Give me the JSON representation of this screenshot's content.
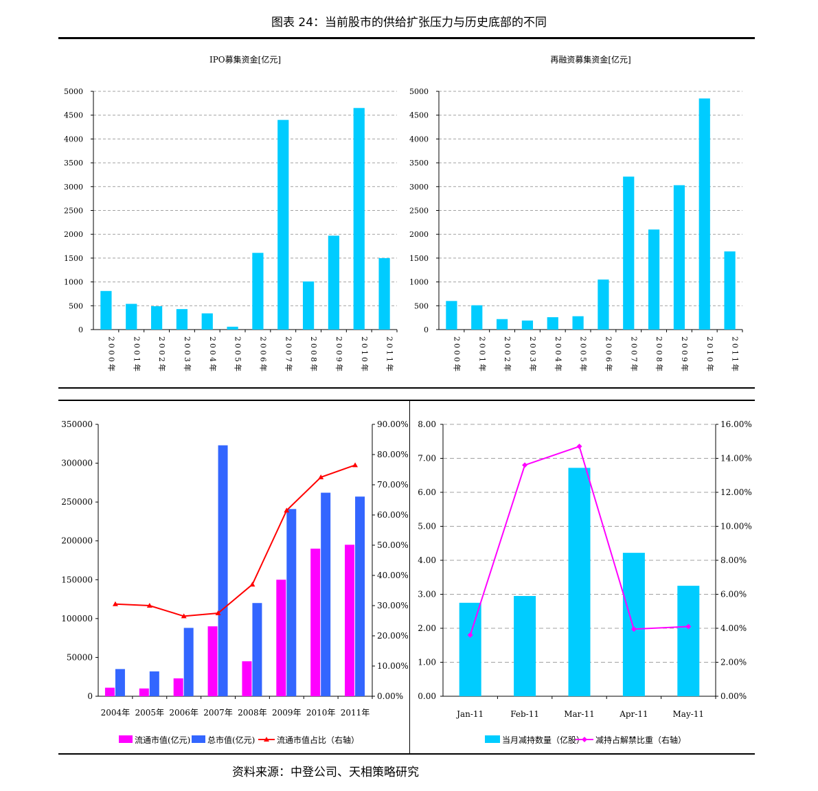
{
  "figure_title": "图表 24：当前股市的供给扩张压力与历史底部的不同",
  "source": "资料来源：中登公司、天相策略研究",
  "colors": {
    "cyan_bar": "#00ccff",
    "magenta_bar": "#ff00ff",
    "blue_bar": "#3366ff",
    "red_line": "#ff0000",
    "magenta_line": "#ff00ff",
    "grid": "#a0a0a0"
  },
  "chart_data": [
    {
      "id": "ipo",
      "type": "bar",
      "title": "IPO募集资金[亿元]",
      "categories": [
        "2000年",
        "2001年",
        "2002年",
        "2003年",
        "2004年",
        "2005年",
        "2006年",
        "2007年",
        "2008年",
        "2009年",
        "2010年",
        "2011年"
      ],
      "values": [
        810,
        540,
        490,
        430,
        340,
        60,
        1610,
        4400,
        1010,
        1970,
        4650,
        1500
      ],
      "ylim": [
        0,
        5000
      ],
      "yticks": [
        "0",
        "500",
        "1000",
        "1500",
        "2000",
        "2500",
        "3000",
        "3500",
        "4000",
        "4500",
        "5000"
      ],
      "grid": true
    },
    {
      "id": "refinance",
      "type": "bar",
      "title": "再融资募集资金[亿元]",
      "categories": [
        "2000年",
        "2001年",
        "2002年",
        "2003年",
        "2004年",
        "2005年",
        "2006年",
        "2007年",
        "2008年",
        "2009年",
        "2010年",
        "2011年"
      ],
      "values": [
        600,
        510,
        220,
        190,
        260,
        280,
        1050,
        3210,
        2100,
        3030,
        4850,
        1640
      ],
      "ylim": [
        0,
        5000
      ],
      "yticks": [
        "0",
        "500",
        "1000",
        "1500",
        "2000",
        "2500",
        "3000",
        "3500",
        "4000",
        "4500",
        "5000"
      ],
      "grid": true
    },
    {
      "id": "market_value",
      "type": "bar",
      "categories": [
        "2004年",
        "2005年",
        "2006年",
        "2007年",
        "2008年",
        "2009年",
        "2010年",
        "2011年"
      ],
      "series": [
        {
          "name": "流通市值(亿元)",
          "kind": "bar",
          "axis": "left",
          "values": [
            11000,
            10000,
            23000,
            90000,
            45000,
            150000,
            190000,
            195000
          ]
        },
        {
          "name": "总市值(亿元)",
          "kind": "bar",
          "axis": "left",
          "values": [
            35000,
            32000,
            88000,
            323000,
            120000,
            241000,
            262000,
            257000
          ]
        },
        {
          "name": "流通市值占比（右轴）",
          "kind": "line",
          "axis": "right",
          "values": [
            30.5,
            30.0,
            26.5,
            27.5,
            37.0,
            61.5,
            72.5,
            76.5
          ]
        }
      ],
      "ylim_left": [
        0,
        350000
      ],
      "ylim_right": [
        0,
        90
      ],
      "yticks_left": [
        "0",
        "50000",
        "100000",
        "150000",
        "200000",
        "250000",
        "300000",
        "350000"
      ],
      "yticks_right": [
        "0.00%",
        "10.00%",
        "20.00%",
        "30.00%",
        "40.00%",
        "50.00%",
        "60.00%",
        "70.00%",
        "80.00%",
        "90.00%"
      ],
      "legend_position": "bottom",
      "grid": false
    },
    {
      "id": "reduction",
      "type": "bar",
      "categories": [
        "Jan-11",
        "Feb-11",
        "Mar-11",
        "Apr-11",
        "May-11"
      ],
      "series": [
        {
          "name": "当月减持数量（亿股）",
          "kind": "bar",
          "axis": "left",
          "values": [
            2.75,
            2.95,
            6.72,
            4.22,
            3.25
          ]
        },
        {
          "name": "减持占解禁比重（右轴）",
          "kind": "line",
          "axis": "right",
          "values": [
            3.6,
            13.6,
            14.7,
            3.95,
            4.1
          ]
        }
      ],
      "ylim_left": [
        0,
        8
      ],
      "ylim_right": [
        0,
        16
      ],
      "yticks_left": [
        "0.00",
        "1.00",
        "2.00",
        "3.00",
        "4.00",
        "5.00",
        "6.00",
        "7.00",
        "8.00"
      ],
      "yticks_right": [
        "0.00%",
        "2.00%",
        "4.00%",
        "6.00%",
        "8.00%",
        "10.00%",
        "12.00%",
        "14.00%",
        "16.00%"
      ],
      "legend_position": "bottom",
      "grid": true
    }
  ]
}
